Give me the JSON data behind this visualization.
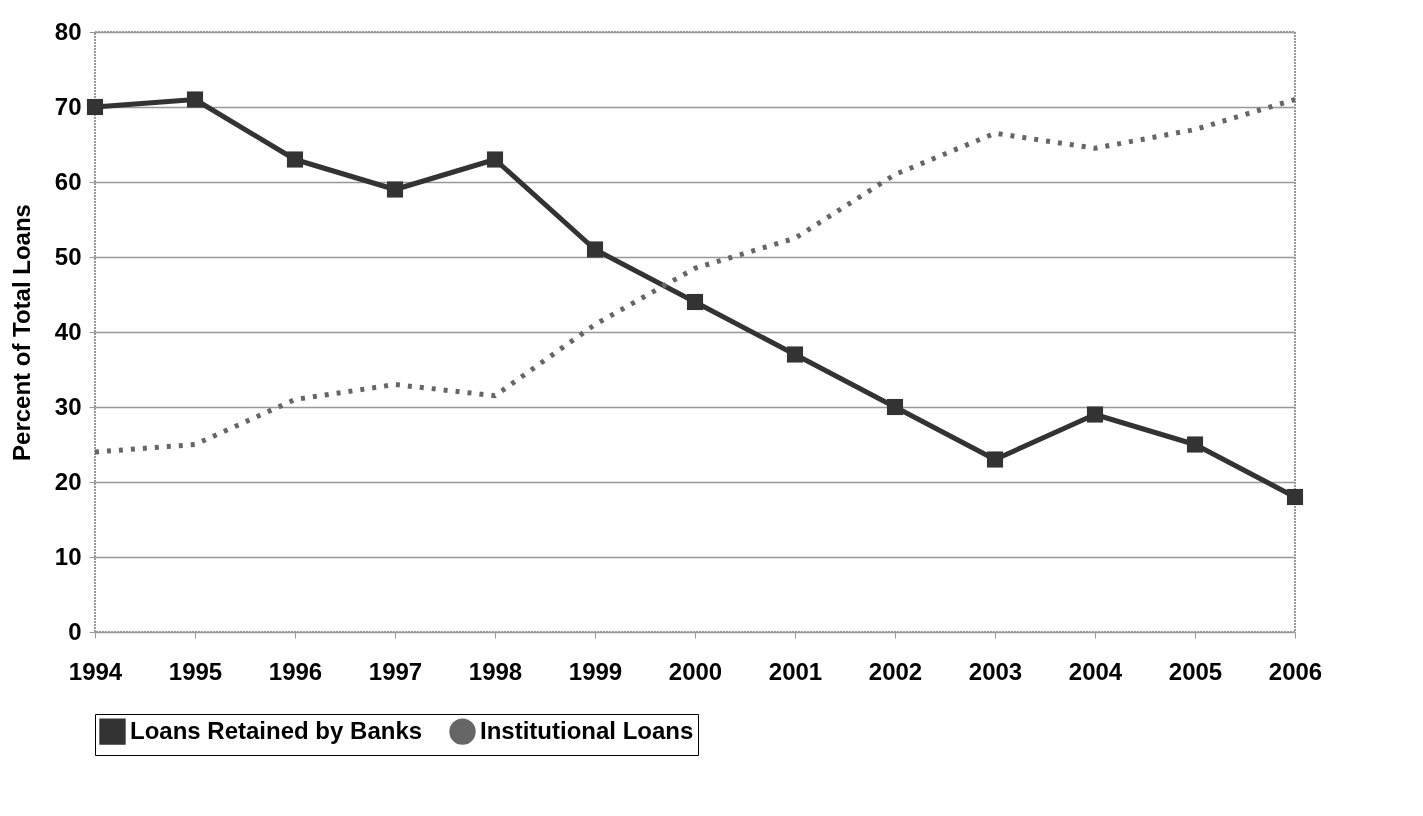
{
  "chart_data": {
    "type": "line",
    "ylabel": "Percent of Total Loans",
    "categories": [
      "1994",
      "1995",
      "1996",
      "1997",
      "1998",
      "1999",
      "2000",
      "2001",
      "2002",
      "2003",
      "2004",
      "2005",
      "2006"
    ],
    "series": [
      {
        "name": "Loans Retained by Banks",
        "color": "#333333",
        "marker": "square",
        "line_style": "solid",
        "values": [
          70,
          71,
          63,
          59,
          63,
          51,
          44,
          37,
          30,
          23,
          29,
          25,
          18
        ]
      },
      {
        "name": "Institutional Loans",
        "color": "#666666",
        "marker": "none",
        "line_style": "dashed",
        "values": [
          24,
          25,
          31,
          33,
          31.5,
          41,
          48.5,
          52.5,
          61,
          66.5,
          64.5,
          67,
          71
        ]
      }
    ],
    "ylim": [
      0,
      80
    ],
    "yticks": [
      0,
      10,
      20,
      30,
      40,
      50,
      60,
      70,
      80
    ],
    "grid": "y",
    "legend": "bottom"
  }
}
